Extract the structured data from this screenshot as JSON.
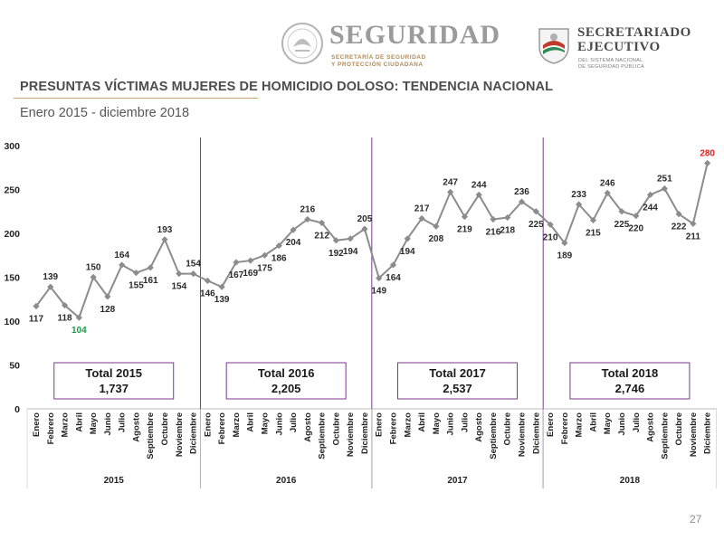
{
  "header": {
    "seguridad_title": "SEGURIDAD",
    "seguridad_sub1": "SECRETARÍA DE SEGURIDAD",
    "seguridad_sub2": "Y PROTECCIÓN CIUDADANA",
    "sesnsp_title1": "SECRETARIADO",
    "sesnsp_title2": "EJECUTIVO",
    "sesnsp_sub1": "DEL SISTEMA NACIONAL",
    "sesnsp_sub2": "DE SEGURIDAD PÚBLICA"
  },
  "title": "PRESUNTAS VÍCTIMAS MUJERES DE HOMICIDIO DOLOSO: TENDENCIA NACIONAL",
  "subtitle": "Enero 2015 - diciembre 2018",
  "page_number": "27",
  "colors": {
    "line": "#8c8c8c",
    "marker": "#8c8c8c",
    "divider": "#7a3a8c",
    "box_border": "#7a3a8c",
    "min_label": "#1a9a4a",
    "max_label": "#e02020",
    "accent_rule": "#c9a27a"
  },
  "chart_data": {
    "type": "line",
    "ylim": [
      0,
      300
    ],
    "yticks": [
      0,
      50,
      100,
      150,
      200,
      250,
      300
    ],
    "grid": false,
    "months": [
      "Enero",
      "Febrero",
      "Marzo",
      "Abril",
      "Mayo",
      "Junio",
      "Julio",
      "Agosto",
      "Septiembre",
      "Octubre",
      "Noviembre",
      "Diciembre"
    ],
    "years": [
      "2015",
      "2016",
      "2017",
      "2018"
    ],
    "values": [
      117,
      139,
      118,
      104,
      150,
      128,
      164,
      155,
      161,
      193,
      154,
      154,
      146,
      139,
      167,
      169,
      175,
      186,
      204,
      216,
      212,
      192,
      194,
      205,
      149,
      164,
      194,
      217,
      208,
      247,
      219,
      244,
      216,
      218,
      236,
      225,
      210,
      189,
      233,
      215,
      246,
      225,
      220,
      244,
      251,
      222,
      211,
      280
    ],
    "min_index": 3,
    "max_index": 47,
    "totals": [
      {
        "label": "Total 2015",
        "value": "1,737"
      },
      {
        "label": "Total 2016",
        "value": "2,205"
      },
      {
        "label": "Total 2017",
        "value": "2,537"
      },
      {
        "label": "Total 2018",
        "value": "2,746"
      }
    ]
  }
}
